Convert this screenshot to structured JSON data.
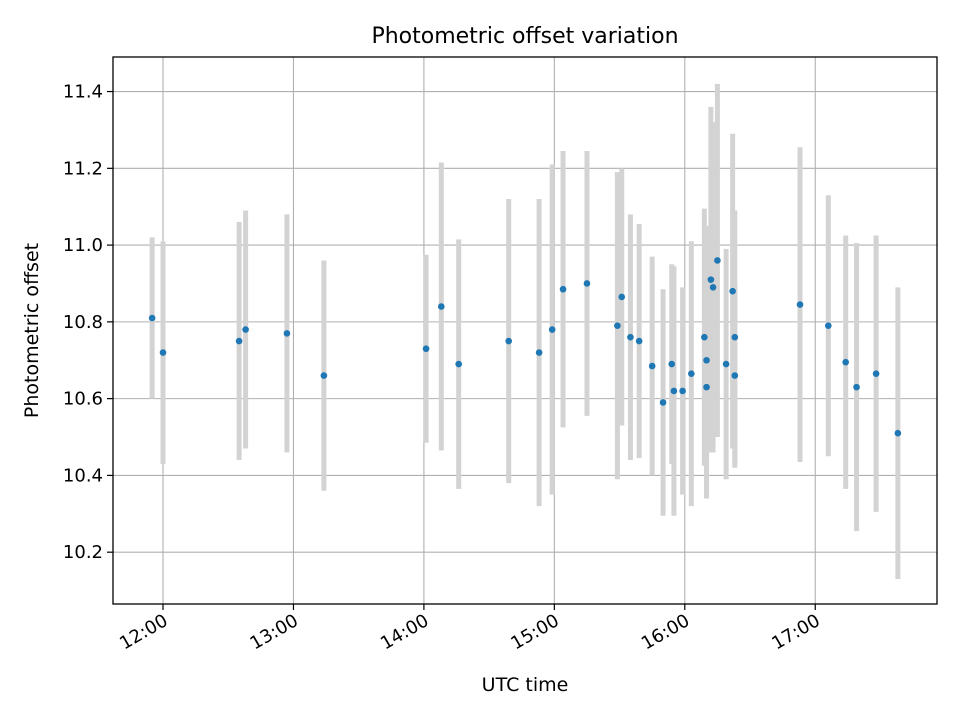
{
  "chart_data": {
    "type": "scatter",
    "title": "Photometric offset variation",
    "xlabel": "UTC time",
    "ylabel": "Photometric offset",
    "x_axis_kind": "time",
    "xlim": [
      "11:37",
      "17:56"
    ],
    "ylim": [
      10.065,
      11.49
    ],
    "x_ticks": [
      "12:00",
      "13:00",
      "14:00",
      "15:00",
      "16:00",
      "17:00"
    ],
    "y_ticks": [
      10.2,
      10.4,
      10.6,
      10.8,
      11.0,
      11.2,
      11.4
    ],
    "y_tick_labels": [
      "10.2",
      "10.4",
      "10.6",
      "10.8",
      "11.0",
      "11.2",
      "11.4"
    ],
    "grid": true,
    "legend": "none",
    "colors": {
      "marker": "#1f77b4",
      "errorbar": "#d3d3d3",
      "grid": "#b0b0b0"
    },
    "points": [
      {
        "x": "11:55",
        "y": 10.81,
        "err": 0.21
      },
      {
        "x": "12:00",
        "y": 10.72,
        "err": 0.29
      },
      {
        "x": "12:35",
        "y": 10.75,
        "err": 0.31
      },
      {
        "x": "12:38",
        "y": 10.78,
        "err": 0.31
      },
      {
        "x": "12:57",
        "y": 10.77,
        "err": 0.31
      },
      {
        "x": "13:14",
        "y": 10.66,
        "err": 0.3
      },
      {
        "x": "14:01",
        "y": 10.73,
        "err": 0.245
      },
      {
        "x": "14:08",
        "y": 10.84,
        "err": 0.375
      },
      {
        "x": "14:16",
        "y": 10.69,
        "err": 0.325
      },
      {
        "x": "14:39",
        "y": 10.75,
        "err": 0.37
      },
      {
        "x": "14:53",
        "y": 10.72,
        "err": 0.4
      },
      {
        "x": "14:59",
        "y": 10.78,
        "err": 0.43
      },
      {
        "x": "15:04",
        "y": 10.885,
        "err": 0.36
      },
      {
        "x": "15:15",
        "y": 10.9,
        "err": 0.345
      },
      {
        "x": "15:29",
        "y": 10.79,
        "err": 0.4
      },
      {
        "x": "15:31",
        "y": 10.865,
        "err": 0.335
      },
      {
        "x": "15:35",
        "y": 10.76,
        "err": 0.32
      },
      {
        "x": "15:39",
        "y": 10.75,
        "err": 0.305
      },
      {
        "x": "15:45",
        "y": 10.685,
        "err": 0.285
      },
      {
        "x": "15:50",
        "y": 10.59,
        "err": 0.295
      },
      {
        "x": "15:54",
        "y": 10.69,
        "err": 0.26
      },
      {
        "x": "15:55",
        "y": 10.62,
        "err": 0.325
      },
      {
        "x": "15:59",
        "y": 10.62,
        "err": 0.27
      },
      {
        "x": "16:03",
        "y": 10.665,
        "err": 0.345
      },
      {
        "x": "16:09",
        "y": 10.76,
        "err": 0.335
      },
      {
        "x": "16:10",
        "y": 10.7,
        "err": 0.35
      },
      {
        "x": "16:10",
        "y": 10.63,
        "err": 0.29
      },
      {
        "x": "16:12",
        "y": 10.91,
        "err": 0.45
      },
      {
        "x": "16:13",
        "y": 10.89,
        "err": 0.43
      },
      {
        "x": "16:15",
        "y": 10.96,
        "err": 0.46
      },
      {
        "x": "16:19",
        "y": 10.69,
        "err": 0.3
      },
      {
        "x": "16:22",
        "y": 10.88,
        "err": 0.41
      },
      {
        "x": "16:23",
        "y": 10.66,
        "err": 0.24
      },
      {
        "x": "16:23",
        "y": 10.76,
        "err": 0.33
      },
      {
        "x": "16:53",
        "y": 10.845,
        "err": 0.41
      },
      {
        "x": "17:06",
        "y": 10.79,
        "err": 0.34
      },
      {
        "x": "17:14",
        "y": 10.695,
        "err": 0.33
      },
      {
        "x": "17:19",
        "y": 10.63,
        "err": 0.375
      },
      {
        "x": "17:28",
        "y": 10.665,
        "err": 0.36
      },
      {
        "x": "17:38",
        "y": 10.51,
        "err": 0.38
      }
    ]
  }
}
